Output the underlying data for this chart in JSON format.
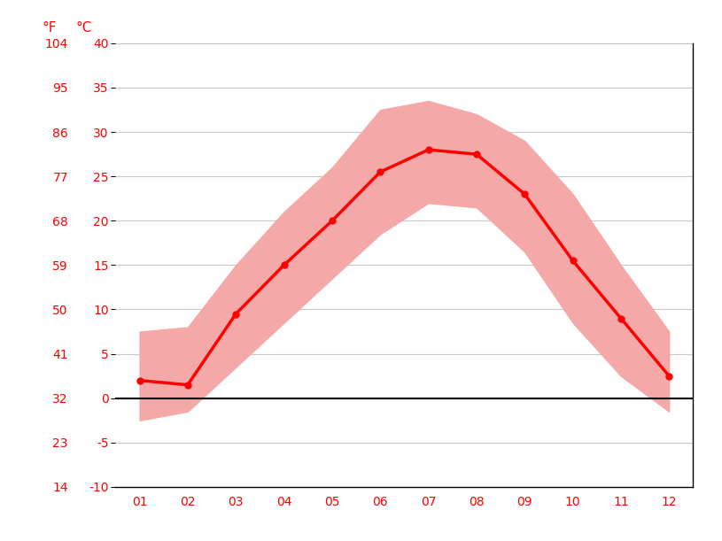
{
  "months": [
    1,
    2,
    3,
    4,
    5,
    6,
    7,
    8,
    9,
    10,
    11,
    12
  ],
  "month_labels": [
    "01",
    "02",
    "03",
    "04",
    "05",
    "06",
    "07",
    "08",
    "09",
    "10",
    "11",
    "12"
  ],
  "avg_temp_c": [
    2.0,
    1.5,
    9.5,
    15.0,
    20.0,
    25.5,
    28.0,
    27.5,
    23.0,
    15.5,
    9.0,
    2.5
  ],
  "min_temp_c": [
    -2.5,
    -1.5,
    3.5,
    8.5,
    13.5,
    18.5,
    22.0,
    21.5,
    16.5,
    8.5,
    2.5,
    -1.5
  ],
  "max_temp_c": [
    7.5,
    8.0,
    15.0,
    21.0,
    26.0,
    32.5,
    33.5,
    32.0,
    29.0,
    23.0,
    15.0,
    7.5
  ],
  "ylim_c": [
    -10,
    40
  ],
  "yticks_c": [
    -10,
    -5,
    0,
    5,
    10,
    15,
    20,
    25,
    30,
    35,
    40
  ],
  "yticks_f": [
    14,
    23,
    32,
    41,
    50,
    59,
    68,
    77,
    86,
    95,
    104
  ],
  "line_color": "#ff0000",
  "band_color": "#f5a8a8",
  "zero_line_color": "#000000",
  "grid_color": "#c8c8c8",
  "label_color": "#ff0000",
  "background_color": "#ffffff",
  "figsize": [
    8.15,
    6.11
  ],
  "dpi": 100
}
